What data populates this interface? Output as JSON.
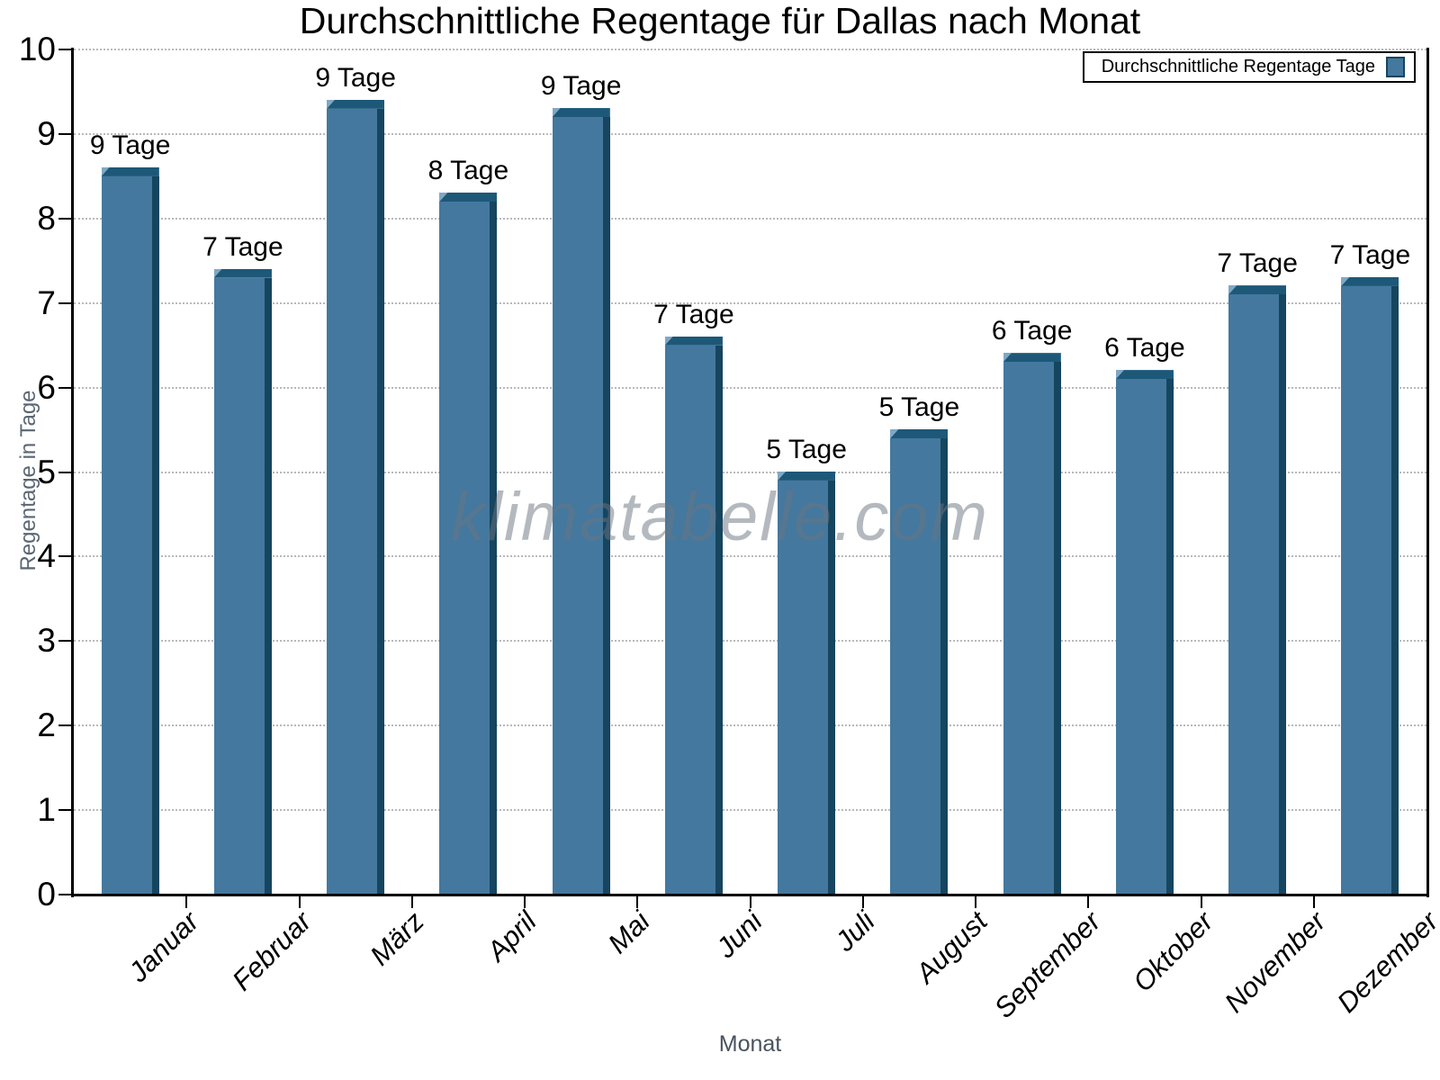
{
  "title": "Durchschnittliche Regentage für Dallas nach Monat",
  "legend": {
    "label": "Durchschnittliche Regentage Tage"
  },
  "watermark": "klimatabelle.com",
  "chart_data": {
    "type": "bar",
    "title": "Durchschnittliche Regentage für Dallas nach Monat",
    "xlabel": "Monat",
    "ylabel": "Regentage in Tage",
    "ylim": [
      0,
      10
    ],
    "ytick_labels": [
      "0",
      "1",
      "2",
      "3",
      "4",
      "5",
      "6",
      "7",
      "8",
      "9",
      "10"
    ],
    "grid": "horizontal-dotted",
    "legend_entries": [
      "Durchschnittliche Regentage Tage"
    ],
    "legend_position": "top-right",
    "categories": [
      "Januar",
      "Februar",
      "März",
      "April",
      "Mai",
      "Juni",
      "Juli",
      "August",
      "September",
      "Oktober",
      "November",
      "Dezember"
    ],
    "series": [
      {
        "name": "Durchschnittliche Regentage",
        "unit": "Tage",
        "values": [
          8.5,
          7.3,
          9.3,
          8.2,
          9.2,
          6.5,
          4.9,
          5.4,
          6.3,
          6.1,
          7.1,
          7.2
        ],
        "bar_labels": [
          "9 Tage",
          "7 Tage",
          "9 Tage",
          "8 Tage",
          "9 Tage",
          "7 Tage",
          "5 Tage",
          "5 Tage",
          "6 Tage",
          "6 Tage",
          "7 Tage",
          "7 Tage"
        ]
      }
    ],
    "colors": {
      "bar_face": "#44789E",
      "bar_side": "#16455F",
      "bar_cap": "#1D5878",
      "bar_cap_highlight": "#7FA8C4",
      "axis": "#000000",
      "grid": "#b9b9b9",
      "axis_title_text": "#5a6673",
      "watermark_text": "#697480"
    }
  }
}
